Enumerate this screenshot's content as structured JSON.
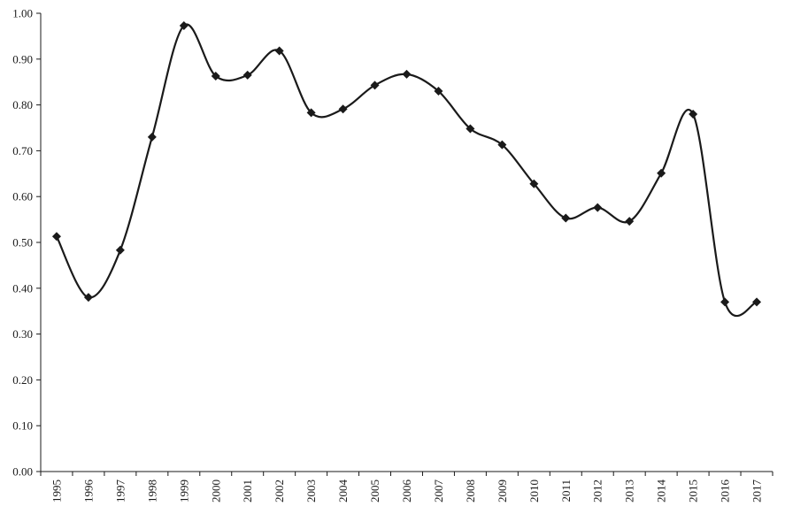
{
  "chart_data": {
    "type": "line",
    "title": "",
    "xlabel": "",
    "ylabel": "",
    "categories": [
      "1995",
      "1996",
      "1997",
      "1998",
      "1999",
      "2000",
      "2001",
      "2002",
      "2003",
      "2004",
      "2005",
      "2006",
      "2007",
      "2008",
      "2009",
      "2010",
      "2011",
      "2012",
      "2013",
      "2014",
      "2015",
      "2016",
      "2017"
    ],
    "series": [
      {
        "values": [
          0.513,
          0.38,
          0.483,
          0.73,
          0.973,
          0.863,
          0.865,
          0.918,
          0.783,
          0.791,
          0.843,
          0.867,
          0.83,
          0.748,
          0.713,
          0.628,
          0.553,
          0.576,
          0.546,
          0.651,
          0.78,
          0.37,
          0.37
        ],
        "marker": "diamond",
        "smooth": true,
        "color": "#1a1a1a"
      }
    ],
    "ylim": [
      0,
      1.0
    ],
    "yticks": [
      "0.00",
      "0.10",
      "0.20",
      "0.30",
      "0.40",
      "0.50",
      "0.60",
      "0.70",
      "0.80",
      "0.90",
      "1.00"
    ],
    "grid": false,
    "legend": "none"
  }
}
